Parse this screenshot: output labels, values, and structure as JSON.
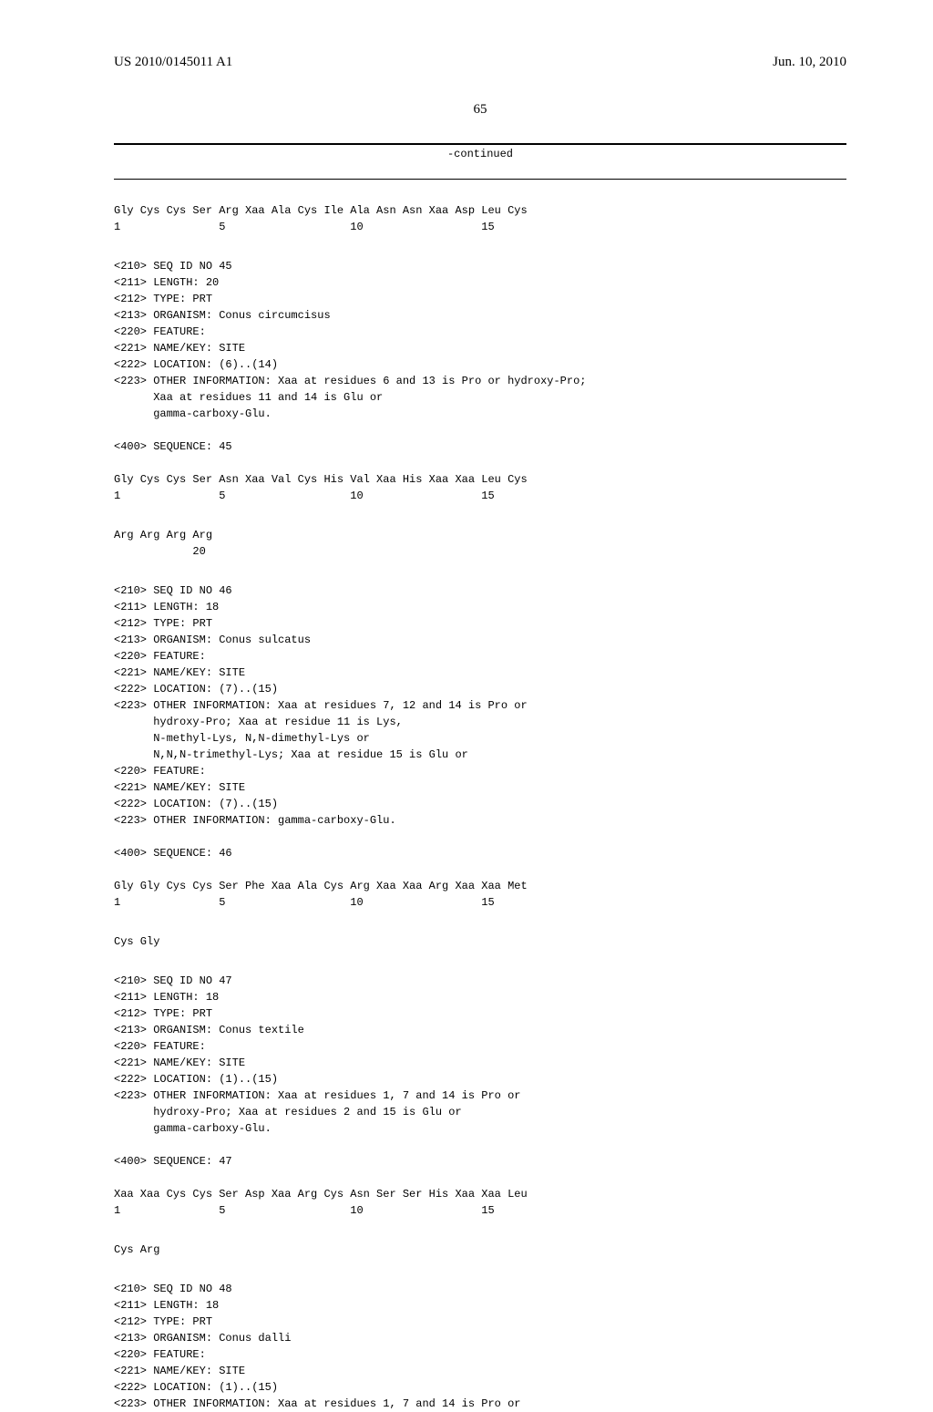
{
  "header": {
    "pub_number": "US 2010/0145011 A1",
    "pub_date": "Jun. 10, 2010"
  },
  "page_number": "65",
  "continued": "-continued",
  "seq44": {
    "line": "Gly Cys Cys Ser Arg Xaa Ala Cys Ile Ala Asn Asn Xaa Asp Leu Cys",
    "pos": "1               5                   10                  15"
  },
  "block45": {
    "meta": "<210> SEQ ID NO 45\n<211> LENGTH: 20\n<212> TYPE: PRT\n<213> ORGANISM: Conus circumcisus\n<220> FEATURE:\n<221> NAME/KEY: SITE\n<222> LOCATION: (6)..(14)\n<223> OTHER INFORMATION: Xaa at residues 6 and 13 is Pro or hydroxy-Pro;\n      Xaa at residues 11 and 14 is Glu or\n      gamma-carboxy-Glu.",
    "tag": "<400> SEQUENCE: 45",
    "line1": "Gly Cys Cys Ser Asn Xaa Val Cys His Val Xaa His Xaa Xaa Leu Cys",
    "pos1": "1               5                   10                  15",
    "line2": "Arg Arg Arg Arg",
    "pos2": "            20"
  },
  "block46": {
    "meta": "<210> SEQ ID NO 46\n<211> LENGTH: 18\n<212> TYPE: PRT\n<213> ORGANISM: Conus sulcatus\n<220> FEATURE:\n<221> NAME/KEY: SITE\n<222> LOCATION: (7)..(15)\n<223> OTHER INFORMATION: Xaa at residues 7, 12 and 14 is Pro or\n      hydroxy-Pro; Xaa at residue 11 is Lys,\n      N-methyl-Lys, N,N-dimethyl-Lys or\n      N,N,N-trimethyl-Lys; Xaa at residue 15 is Glu or\n<220> FEATURE:\n<221> NAME/KEY: SITE\n<222> LOCATION: (7)..(15)\n<223> OTHER INFORMATION: gamma-carboxy-Glu.",
    "tag": "<400> SEQUENCE: 46",
    "line1": "Gly Gly Cys Cys Ser Phe Xaa Ala Cys Arg Xaa Xaa Arg Xaa Xaa Met",
    "pos1": "1               5                   10                  15",
    "line2": "Cys Gly"
  },
  "block47": {
    "meta": "<210> SEQ ID NO 47\n<211> LENGTH: 18\n<212> TYPE: PRT\n<213> ORGANISM: Conus textile\n<220> FEATURE:\n<221> NAME/KEY: SITE\n<222> LOCATION: (1)..(15)\n<223> OTHER INFORMATION: Xaa at residues 1, 7 and 14 is Pro or\n      hydroxy-Pro; Xaa at residues 2 and 15 is Glu or\n      gamma-carboxy-Glu.",
    "tag": "<400> SEQUENCE: 47",
    "line1": "Xaa Xaa Cys Cys Ser Asp Xaa Arg Cys Asn Ser Ser His Xaa Xaa Leu",
    "pos1": "1               5                   10                  15",
    "line2": "Cys Arg"
  },
  "block48": {
    "meta": "<210> SEQ ID NO 48\n<211> LENGTH: 18\n<212> TYPE: PRT\n<213> ORGANISM: Conus dalli\n<220> FEATURE:\n<221> NAME/KEY: SITE\n<222> LOCATION: (1)..(15)\n<223> OTHER INFORMATION: Xaa at residues 1, 7 and 14 is Pro or"
  }
}
